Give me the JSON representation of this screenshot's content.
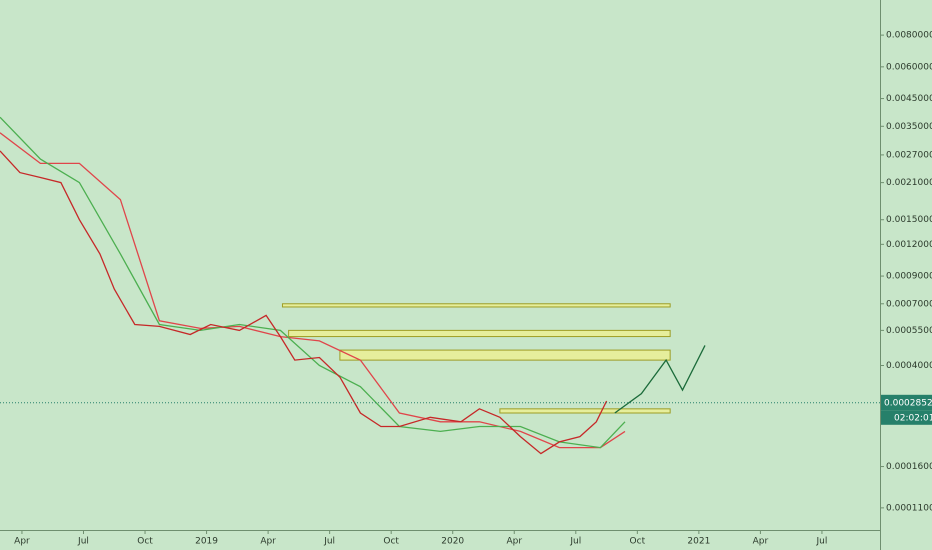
{
  "chart_data": {
    "type": "line",
    "log_scale": true,
    "xlim": [
      1.93,
      44.83
    ],
    "ylim": [
      9e-05,
      0.011
    ],
    "xticks": [
      {
        "value": 3,
        "label": "Apr"
      },
      {
        "value": 6,
        "label": "Jul"
      },
      {
        "value": 9,
        "label": "Oct"
      },
      {
        "value": 12,
        "label": "2019"
      },
      {
        "value": 15,
        "label": "Apr"
      },
      {
        "value": 18,
        "label": "Jul"
      },
      {
        "value": 21,
        "label": "Oct"
      },
      {
        "value": 24,
        "label": "2020"
      },
      {
        "value": 27,
        "label": "Apr"
      },
      {
        "value": 30,
        "label": "Jul"
      },
      {
        "value": 33,
        "label": "Oct"
      },
      {
        "value": 36,
        "label": "2021"
      },
      {
        "value": 39,
        "label": "Apr"
      },
      {
        "value": 42,
        "label": "Jul"
      }
    ],
    "yticks": [
      {
        "value": 0.008,
        "label": "0.0080000"
      },
      {
        "value": 0.006,
        "label": "0.0060000"
      },
      {
        "value": 0.0045,
        "label": "0.0045000"
      },
      {
        "value": 0.0035,
        "label": "0.0035000"
      },
      {
        "value": 0.0027,
        "label": "0.0027000"
      },
      {
        "value": 0.0021,
        "label": "0.0021000"
      },
      {
        "value": 0.0015,
        "label": "0.0015000"
      },
      {
        "value": 0.0012,
        "label": "0.0012000"
      },
      {
        "value": 0.0009,
        "label": "0.0009000"
      },
      {
        "value": 0.0007,
        "label": "0.0007000"
      },
      {
        "value": 0.00055,
        "label": "0.0005500"
      },
      {
        "value": 0.0004,
        "label": "0.0004000"
      },
      {
        "value": 0.00016,
        "label": "0.0001600"
      },
      {
        "value": 0.00011,
        "label": "0.0001100"
      }
    ],
    "series": [
      {
        "color": "#e0454a",
        "x": [
          1.93,
          3.9,
          5.8,
          7.8,
          9.7,
          11.7,
          13.6,
          15.6,
          17.5,
          19.5,
          21.4,
          23.4,
          25.3,
          27.3,
          29.2,
          31.2,
          32.4
        ],
        "values": [
          0.0033,
          0.0025,
          0.0025,
          0.0018,
          0.0006,
          0.00056,
          0.00057,
          0.00052,
          0.0005,
          0.00042,
          0.00026,
          0.00024,
          0.00024,
          0.00022,
          0.00019,
          0.00019,
          0.00022
        ]
      },
      {
        "color": "#4caf50",
        "x": [
          1.93,
          3.9,
          5.8,
          7.8,
          9.7,
          11.7,
          13.6,
          15.6,
          17.5,
          19.5,
          21.4,
          23.4,
          25.3,
          27.3,
          29.2,
          31.2,
          32.4
        ],
        "values": [
          0.0038,
          0.0026,
          0.0021,
          0.0011,
          0.00058,
          0.00055,
          0.00058,
          0.00055,
          0.0004,
          0.00033,
          0.00023,
          0.00022,
          0.00023,
          0.00023,
          0.0002,
          0.00019,
          0.00024
        ]
      },
      {
        "color": "#c62828",
        "x": [
          1.93,
          2.9,
          3.9,
          4.9,
          5.8,
          6.8,
          7.5,
          8.5,
          9.7,
          11.2,
          12.2,
          13.6,
          14.9,
          15.6,
          16.3,
          17.5,
          18.5,
          19.5,
          20.5,
          21.4,
          22.9,
          24.4,
          25.3,
          26.3,
          27.3,
          28.3,
          29.2,
          30.2,
          31.0,
          31.5
        ],
        "values": [
          0.0028,
          0.0023,
          0.0022,
          0.0021,
          0.0015,
          0.0011,
          0.0008,
          0.00058,
          0.00057,
          0.00053,
          0.00058,
          0.00055,
          0.00063,
          0.00052,
          0.00042,
          0.00043,
          0.00036,
          0.00026,
          0.00023,
          0.00023,
          0.00025,
          0.00024,
          0.00027,
          0.00025,
          0.00021,
          0.00018,
          0.0002,
          0.00021,
          0.00024,
          0.00029
        ]
      },
      {
        "color": "#1b6b3a",
        "x": [
          31.9,
          33.2,
          34.4,
          35.2,
          36.3
        ],
        "values": [
          0.00026,
          0.00031,
          0.00042,
          0.00032,
          0.00048
        ]
      }
    ],
    "zones": [
      {
        "x0": 15.7,
        "x1": 34.6,
        "top": 0.0007,
        "bottom": 0.00068
      },
      {
        "x0": 16.0,
        "x1": 34.6,
        "top": 0.00055,
        "bottom": 0.00052
      },
      {
        "x0": 18.5,
        "x1": 34.6,
        "top": 0.00046,
        "bottom": 0.00042
      },
      {
        "x0": 26.3,
        "x1": 34.6,
        "top": 0.00027,
        "bottom": 0.00026
      }
    ],
    "zone_color": "#e6ee9c",
    "last_price": {
      "value": 0.0002852,
      "label": "0.0002852"
    },
    "last_price_color": "#26806a",
    "countdown": "02:02:01"
  }
}
